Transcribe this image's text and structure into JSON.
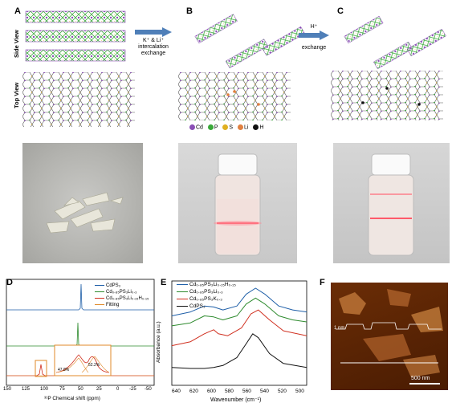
{
  "panels": {
    "A": "A",
    "B": "B",
    "C": "C",
    "D": "D",
    "E": "E",
    "F": "F"
  },
  "views": {
    "side": "Side View",
    "top": "Top View"
  },
  "arrows": {
    "ab_line1": "K⁺ & Li⁺",
    "ab_line2": "intercalation",
    "ab_line3": "exchange",
    "bc_line1": "H⁺",
    "bc_line2": "exchange"
  },
  "atom_legend": [
    {
      "label": "Cd",
      "color": "#8a4fb5"
    },
    {
      "label": "P",
      "color": "#3aa83a"
    },
    {
      "label": "S",
      "color": "#e0b020"
    },
    {
      "label": "Li",
      "color": "#e08040"
    },
    {
      "label": "H",
      "color": "#111111"
    }
  ],
  "panelD": {
    "xlabel": "³¹P Chemical shift (ppm)",
    "ticks": [
      "150",
      "125",
      "100",
      "75",
      "50",
      "25",
      "0",
      "-25",
      "-50"
    ],
    "legend": [
      {
        "label": "CdPS₃",
        "color": "#1f5fa8"
      },
      {
        "label": "Cd₀.₈₅PS₃Li₀.₃",
        "color": "#2e8b2e"
      },
      {
        "label": "Cd₀.₈₅PS₃Li₀.₁₅H₀.₁₅",
        "color": "#d03020"
      },
      {
        "label": "Fitting",
        "color": "#e08a2a"
      }
    ],
    "inset_labels": [
      "47.8%",
      "52.2%"
    ]
  },
  "chart_data": {
    "type": "line",
    "title": "",
    "xlabel": "Wavenumber (cm⁻¹)",
    "ylabel": "Absorbance (a.u.)",
    "xlim": [
      645,
      500
    ],
    "x_ticks": [
      "640",
      "620",
      "600",
      "580",
      "560",
      "540",
      "520",
      "500"
    ],
    "series": [
      {
        "name": "Cd₀.₈₅PS₃Li₀.₁₅H₀.₁₅",
        "color": "#1f5fa8",
        "x": [
          645,
          625,
          610,
          600,
          590,
          575,
          565,
          555,
          545,
          530,
          515,
          500
        ],
        "y": [
          0.7,
          0.74,
          0.8,
          0.79,
          0.76,
          0.8,
          0.92,
          0.98,
          0.92,
          0.8,
          0.76,
          0.74
        ]
      },
      {
        "name": "Cd₀.₈₅PS₃Li₀.₃",
        "color": "#2e8b2e",
        "x": [
          645,
          625,
          610,
          600,
          590,
          575,
          565,
          555,
          545,
          530,
          515,
          500
        ],
        "y": [
          0.6,
          0.63,
          0.7,
          0.69,
          0.66,
          0.7,
          0.82,
          0.88,
          0.82,
          0.7,
          0.66,
          0.64
        ]
      },
      {
        "name": "Cd₀.₈₅PS₃K₀.₃",
        "color": "#d03020",
        "x": [
          645,
          625,
          610,
          600,
          595,
          585,
          570,
          560,
          552,
          540,
          525,
          500
        ],
        "y": [
          0.4,
          0.44,
          0.52,
          0.56,
          0.52,
          0.5,
          0.58,
          0.72,
          0.76,
          0.66,
          0.55,
          0.5
        ]
      },
      {
        "name": "CdPS₃",
        "color": "#111111",
        "x": [
          645,
          625,
          610,
          600,
          590,
          575,
          565,
          558,
          552,
          540,
          525,
          500
        ],
        "y": [
          0.18,
          0.17,
          0.17,
          0.18,
          0.2,
          0.28,
          0.42,
          0.52,
          0.48,
          0.32,
          0.22,
          0.18
        ]
      }
    ]
  },
  "panelF": {
    "height_label": "1 nm",
    "scale_label": "500 nm"
  }
}
